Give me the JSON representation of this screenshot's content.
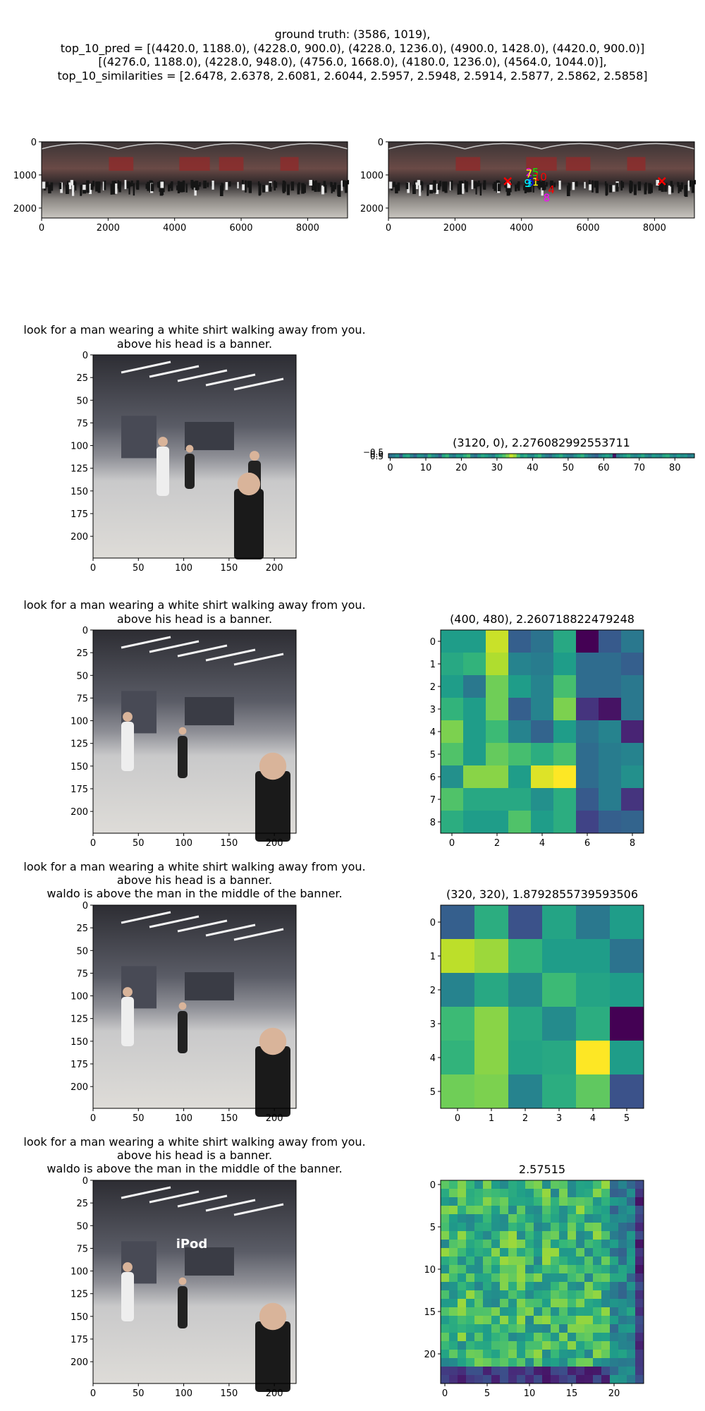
{
  "header": {
    "lines": [
      "ground truth: (3586, 1019),",
      "top_10_pred = [(4420.0, 1188.0), (4228.0, 900.0), (4228.0, 1236.0), (4900.0, 1428.0), (4420.0, 900.0)]",
      "[(4276.0, 1188.0), (4228.0, 948.0), (4756.0, 1668.0), (4180.0, 1236.0), (4564.0, 1044.0)],",
      "top_10_similarities = [2.6478, 2.6378, 2.6081, 2.6044, 2.5957, 2.5948, 2.5914, 2.5877, 2.5862, 2.5858]"
    ]
  },
  "panorama": {
    "xticks": [
      "0",
      "2000",
      "4000",
      "6000",
      "8000"
    ],
    "yticks": [
      "0",
      "1000",
      "2000"
    ],
    "markers": [
      "1",
      "2",
      "3",
      "4",
      "5",
      "6",
      "7",
      "8",
      "9",
      "10"
    ],
    "marker_colors": [
      "#ffff00",
      "#ff00ff",
      "#00ffff",
      "#ff0000",
      "#00ff00",
      "#0000ff",
      "#ffff00",
      "#ff00ff",
      "#00ffff",
      "#ff0000"
    ]
  },
  "rows": [
    {
      "caption": [
        "look for a man wearing a white shirt walking away from you.",
        "above his head is a banner."
      ],
      "image_xticks": [
        "0",
        "50",
        "100",
        "150",
        "200"
      ],
      "image_yticks": [
        "0",
        "25",
        "50",
        "75",
        "100",
        "125",
        "150",
        "175",
        "200"
      ],
      "heatmap_title": "(3120, 0), 2.276082992553711",
      "heatmap_xticks": [
        "0",
        "10",
        "20",
        "30",
        "40",
        "50",
        "60",
        "70",
        "80"
      ],
      "heatmap_yticks": [
        "−0.5",
        "0.0",
        "0.5"
      ]
    },
    {
      "caption": [
        "look for a man wearing a white shirt walking away from you.",
        "above his head is a banner."
      ],
      "image_xticks": [
        "0",
        "50",
        "100",
        "150",
        "200"
      ],
      "image_yticks": [
        "0",
        "25",
        "50",
        "75",
        "100",
        "125",
        "150",
        "175",
        "200"
      ],
      "heatmap_title": "(400, 480), 2.260718822479248",
      "heatmap_xticks": [
        "0",
        "2",
        "4",
        "6",
        "8"
      ],
      "heatmap_yticks": [
        "0",
        "1",
        "2",
        "3",
        "4",
        "5",
        "6",
        "7",
        "8"
      ]
    },
    {
      "caption": [
        "look for a man wearing a white shirt walking away from you.",
        "above his head is a banner.",
        "waldo is above the man in the middle of the banner."
      ],
      "image_xticks": [
        "0",
        "50",
        "100",
        "150",
        "200"
      ],
      "image_yticks": [
        "0",
        "25",
        "50",
        "75",
        "100",
        "125",
        "150",
        "175",
        "200"
      ],
      "heatmap_title": "(320, 320), 1.8792855739593506",
      "heatmap_xticks": [
        "0",
        "1",
        "2",
        "3",
        "4",
        "5"
      ],
      "heatmap_yticks": [
        "0",
        "1",
        "2",
        "3",
        "4",
        "5"
      ]
    },
    {
      "caption": [
        "look for a man wearing a white shirt walking away from you.",
        "above his head is a banner.",
        "waldo is above the man in the middle of the banner."
      ],
      "image_xticks": [
        "0",
        "50",
        "100",
        "150",
        "200"
      ],
      "image_yticks": [
        "0",
        "25",
        "50",
        "75",
        "100",
        "125",
        "150",
        "175",
        "200"
      ],
      "image_overlay_text": "iPod",
      "heatmap_title": "2.57515",
      "heatmap_xticks": [
        "0",
        "5",
        "10",
        "15",
        "20"
      ],
      "heatmap_yticks": [
        "0",
        "5",
        "10",
        "15",
        "20"
      ]
    }
  ],
  "chart_data": [
    {
      "type": "heatmap",
      "title": "(3120, 0), 2.276082992553711",
      "rows": 1,
      "cols": 86,
      "colormap": "viridis",
      "values": [
        [
          0.35,
          0.42,
          0.5,
          0.28,
          0.55,
          0.6,
          0.45,
          0.33,
          0.52,
          0.48,
          0.38,
          0.62,
          0.5,
          0.44,
          0.3,
          0.58,
          0.66,
          0.47,
          0.4,
          0.55,
          0.5,
          0.62,
          0.7,
          0.45,
          0.36,
          0.52,
          0.6,
          0.55,
          0.48,
          0.42,
          0.58,
          0.65,
          0.72,
          0.8,
          0.92,
          0.85,
          0.7,
          0.55,
          0.62,
          0.5,
          0.45,
          0.58,
          0.66,
          0.5,
          0.42,
          0.35,
          0.48,
          0.55,
          0.62,
          0.5,
          0.44,
          0.38,
          0.5,
          0.58,
          0.64,
          0.5,
          0.42,
          0.36,
          0.3,
          0.45,
          0.52,
          0.58,
          0.5,
          0.05,
          0.4,
          0.48,
          0.55,
          0.62,
          0.5,
          0.45,
          0.52,
          0.6,
          0.48,
          0.42,
          0.55,
          0.5,
          0.46,
          0.58,
          0.62,
          0.5,
          0.44,
          0.55,
          0.48,
          0.52,
          0.4,
          0.46
        ]
      ]
    },
    {
      "type": "heatmap",
      "title": "(400, 480), 2.260718822479248",
      "rows": 9,
      "cols": 9,
      "colormap": "viridis",
      "values": [
        [
          0.55,
          0.55,
          0.92,
          0.3,
          0.38,
          0.6,
          0.0,
          0.28,
          0.4
        ],
        [
          0.6,
          0.65,
          0.88,
          0.45,
          0.42,
          0.55,
          0.35,
          0.35,
          0.3
        ],
        [
          0.55,
          0.4,
          0.78,
          0.55,
          0.45,
          0.7,
          0.35,
          0.35,
          0.4
        ],
        [
          0.65,
          0.55,
          0.78,
          0.3,
          0.45,
          0.8,
          0.15,
          0.05,
          0.4
        ],
        [
          0.8,
          0.55,
          0.68,
          0.45,
          0.32,
          0.55,
          0.38,
          0.45,
          0.1
        ],
        [
          0.72,
          0.55,
          0.76,
          0.7,
          0.62,
          0.7,
          0.35,
          0.42,
          0.45
        ],
        [
          0.5,
          0.82,
          0.82,
          0.55,
          0.95,
          1.0,
          0.35,
          0.42,
          0.5
        ],
        [
          0.72,
          0.6,
          0.6,
          0.6,
          0.5,
          0.62,
          0.28,
          0.42,
          0.15
        ],
        [
          0.62,
          0.55,
          0.55,
          0.72,
          0.55,
          0.62,
          0.2,
          0.3,
          0.32
        ]
      ]
    },
    {
      "type": "heatmap",
      "title": "(320, 320), 1.8792855739593506",
      "rows": 6,
      "cols": 6,
      "colormap": "viridis",
      "values": [
        [
          0.3,
          0.62,
          0.25,
          0.58,
          0.4,
          0.55
        ],
        [
          0.9,
          0.85,
          0.65,
          0.55,
          0.55,
          0.38
        ],
        [
          0.45,
          0.6,
          0.48,
          0.68,
          0.58,
          0.55
        ],
        [
          0.68,
          0.82,
          0.6,
          0.48,
          0.62,
          0.0
        ],
        [
          0.65,
          0.82,
          0.58,
          0.6,
          1.0,
          0.55
        ],
        [
          0.78,
          0.8,
          0.45,
          0.62,
          0.75,
          0.25
        ]
      ]
    },
    {
      "type": "heatmap",
      "title": "2.57515",
      "rows": 24,
      "cols": 24,
      "colormap": "viridis",
      "values_generator": "seeded"
    }
  ]
}
